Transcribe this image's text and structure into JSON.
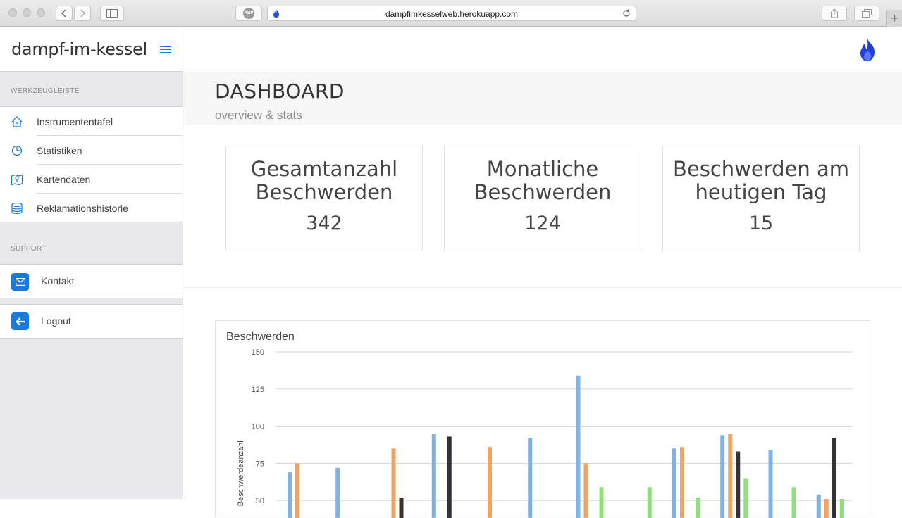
{
  "browser": {
    "url": "dampfimkesselweb.herokuapp.com"
  },
  "sidebar": {
    "brand": "dampf-im-kessel",
    "toolbar_heading": "WERKZEUGLEISTE",
    "items": [
      {
        "label": "Instrumententafel",
        "icon": "home-icon"
      },
      {
        "label": "Statistiken",
        "icon": "pie-chart-icon"
      },
      {
        "label": "Kartendaten",
        "icon": "map-icon"
      },
      {
        "label": "Reklamationshistorie",
        "icon": "database-icon"
      }
    ],
    "support_heading": "SUPPORT",
    "contact_label": "Kontakt",
    "logout_label": "Logout"
  },
  "header": {
    "title": "DASHBOARD",
    "subtitle": "overview & stats"
  },
  "stats": [
    {
      "label": "Gesamtanzahl Beschwerden",
      "value": "342"
    },
    {
      "label": "Monatliche Beschwerden",
      "value": "124"
    },
    {
      "label": "Beschwerden am heutigen Tag",
      "value": "15"
    }
  ],
  "colors": {
    "accent": "#1a7ad8",
    "series_blue": "#7fb3e6",
    "series_orange": "#f4a261",
    "series_dark": "#333333",
    "series_green": "#8ee07a"
  },
  "chart_data": {
    "type": "bar",
    "title": "Beschwerden",
    "ylabel": "Beschwerdeanzahl",
    "xlabel": "",
    "ylim": [
      50,
      150
    ],
    "yticks": [
      50,
      75,
      100,
      125,
      150
    ],
    "grid": true,
    "groups": 12,
    "series": [
      {
        "color": "blue",
        "values": [
          69,
          72,
          null,
          95,
          null,
          92,
          134,
          null,
          85,
          94,
          84,
          54
        ]
      },
      {
        "color": "orange",
        "values": [
          75,
          null,
          85,
          null,
          86,
          null,
          75,
          null,
          86,
          95,
          null,
          51
        ]
      },
      {
        "color": "dark",
        "values": [
          null,
          null,
          52,
          93,
          null,
          null,
          null,
          null,
          null,
          83,
          null,
          92
        ]
      },
      {
        "color": "green",
        "values": [
          null,
          null,
          null,
          null,
          null,
          null,
          59,
          59,
          52,
          65,
          59,
          51
        ]
      }
    ]
  }
}
